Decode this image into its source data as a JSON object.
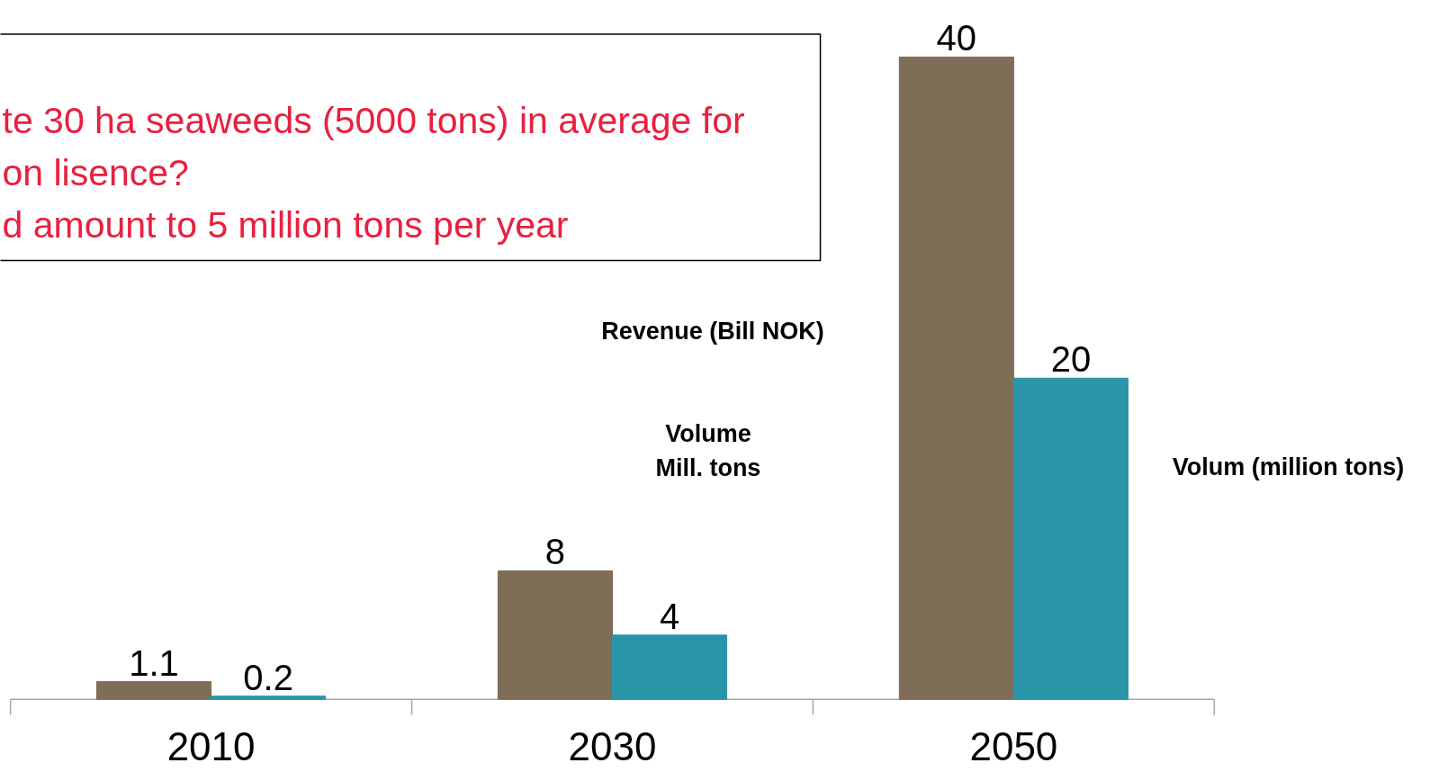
{
  "chart_data": {
    "type": "bar",
    "categories": [
      "2010",
      "2030",
      "2050"
    ],
    "series": [
      {
        "color": "#7f6d58",
        "values": [
          1.1,
          8,
          40
        ]
      },
      {
        "name": "Volum (million tons)",
        "color": "#2a95a8",
        "values": [
          0.2,
          4,
          20
        ]
      }
    ],
    "data_labels": true,
    "annotations": [
      "te 30 ha seaweeds (5000 tons) in average for\non lisence?\nd amount to 5 million tons per year",
      "Revenue (Bill NOK)",
      "Volume\nMill. tons"
    ]
  }
}
